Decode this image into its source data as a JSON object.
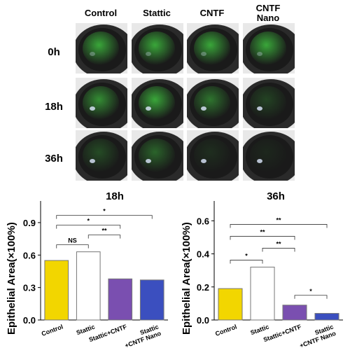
{
  "image_grid": {
    "columns": [
      "Control",
      "Stattic",
      "CNTF",
      "CNTF\nNano"
    ],
    "rows": [
      "0h",
      "18h",
      "36h"
    ],
    "green_intensity": [
      [
        0.85,
        0.85,
        0.85,
        0.85
      ],
      [
        0.7,
        0.85,
        0.55,
        0.25
      ],
      [
        0.3,
        0.45,
        0.12,
        0.08
      ]
    ],
    "colors": {
      "stain": "#3fbf3f",
      "iris": "#1a1a1a",
      "skin": "#e8e8e8"
    }
  },
  "chart_data": [
    {
      "type": "bar",
      "title": "18h",
      "ylabel": "Epithelial Area(×100%)",
      "categories": [
        "Control",
        "Stattic",
        "Stattic+CNTF",
        "Stattic\n+CNTF Nano"
      ],
      "values": [
        0.55,
        0.63,
        0.38,
        0.37
      ],
      "colors": [
        "#f2d600",
        "#ffffff",
        "#7a4fb0",
        "#3b4fbf"
      ],
      "yticks": [
        0.0,
        0.3,
        0.6,
        0.9
      ],
      "ytick_labels": [
        "0.0",
        "0.3",
        "0.6",
        "0.9"
      ],
      "ylim": [
        0,
        1.1
      ],
      "grid": false,
      "significance": [
        {
          "from": 0,
          "to": 3,
          "label": "*"
        },
        {
          "from": 0,
          "to": 2,
          "label": "*"
        },
        {
          "from": 1,
          "to": 2,
          "label": "**"
        },
        {
          "from": 0,
          "to": 1,
          "label": "NS"
        }
      ]
    },
    {
      "type": "bar",
      "title": "36h",
      "ylabel": "Epithelial Area(×100%)",
      "categories": [
        "Control",
        "Stattic",
        "Stattic+CNTF",
        "Stattic\n+CNTF Nano"
      ],
      "values": [
        0.19,
        0.32,
        0.09,
        0.04
      ],
      "colors": [
        "#f2d600",
        "#ffffff",
        "#7a4fb0",
        "#3b4fbf"
      ],
      "yticks": [
        0.0,
        0.2,
        0.4,
        0.6
      ],
      "ytick_labels": [
        "0.0",
        "0.2",
        "0.4",
        "0.6"
      ],
      "ylim": [
        0,
        0.72
      ],
      "grid": false,
      "significance": [
        {
          "from": 0,
          "to": 3,
          "label": "**"
        },
        {
          "from": 0,
          "to": 2,
          "label": "**"
        },
        {
          "from": 1,
          "to": 2,
          "label": "**"
        },
        {
          "from": 0,
          "to": 1,
          "label": "*"
        },
        {
          "from": 2,
          "to": 3,
          "label": "*"
        }
      ]
    }
  ]
}
